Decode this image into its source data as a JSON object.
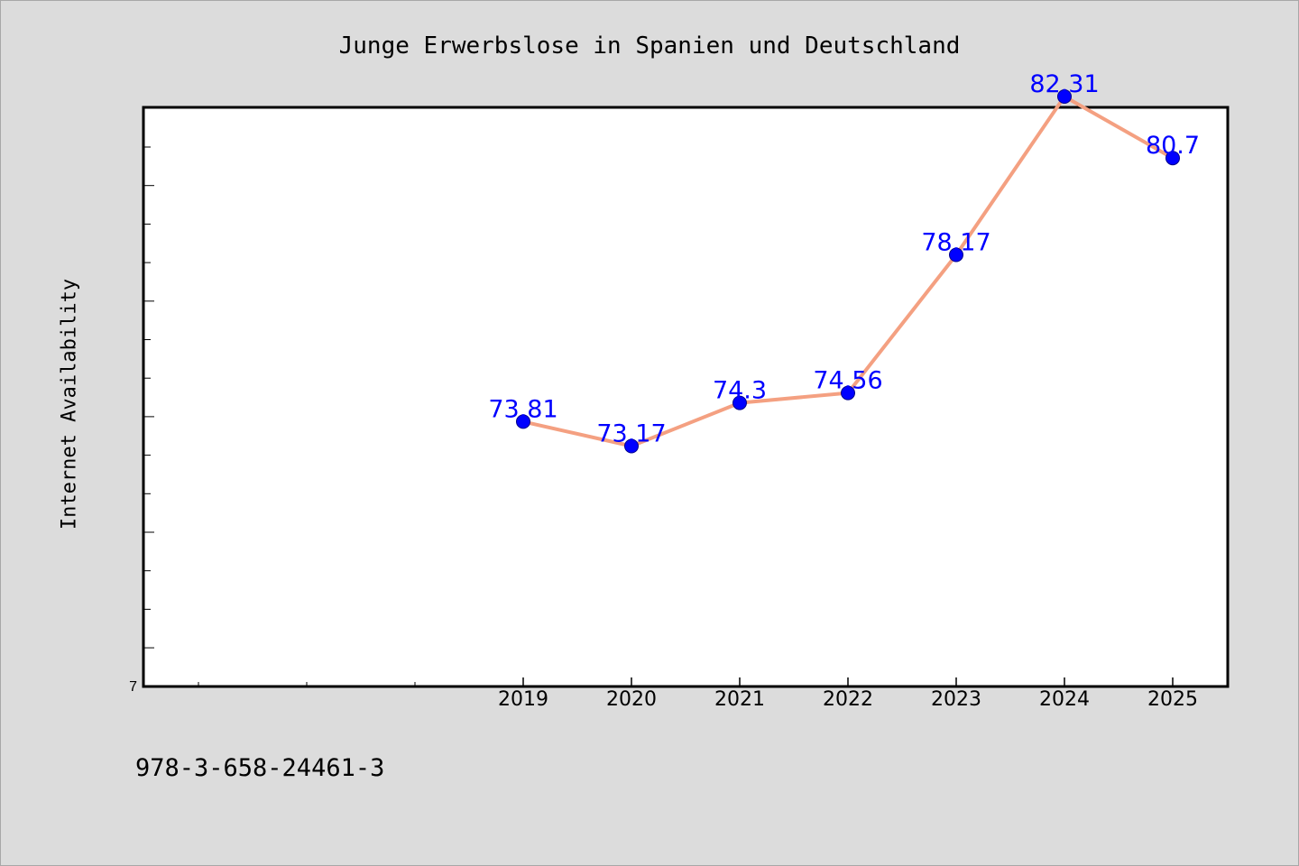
{
  "chart_data": {
    "type": "line",
    "title": "Junge Erwerbslose in Spanien und Deutschland",
    "ylabel": "Internet Availability",
    "xlabel": "",
    "x": [
      "2019",
      "2020",
      "2021",
      "2022",
      "2023",
      "2024",
      "2025"
    ],
    "series": [
      {
        "values": [
          73.81,
          73.17,
          74.3,
          74.56,
          78.17,
          82.31,
          80.7
        ],
        "labels": [
          "73.81",
          "73.17",
          "74.3",
          "74.56",
          "78.17",
          "82.31",
          "80.7"
        ]
      }
    ],
    "y_tick_labels": [
      "7"
    ],
    "grid": false,
    "line_color": "#f4a081",
    "marker_color": "#0000ff",
    "label_color": "#0000ff"
  },
  "footer": {
    "isbn": "978-3-658-24461-3"
  }
}
